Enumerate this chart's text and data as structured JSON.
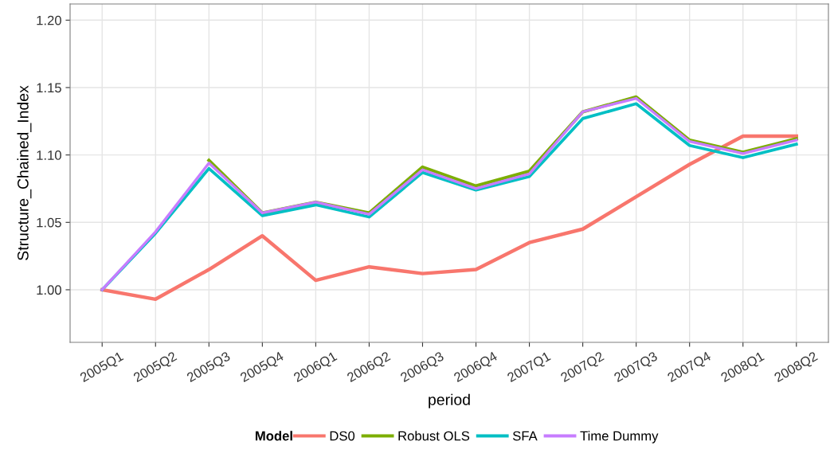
{
  "chart_data": {
    "type": "line",
    "xlabel": "period",
    "ylabel": "Structure_Chained_Index",
    "legend_title": "Model",
    "categories": [
      "2005Q1",
      "2005Q2",
      "2005Q3",
      "2005Q4",
      "2006Q1",
      "2006Q2",
      "2006Q3",
      "2006Q4",
      "2007Q1",
      "2007Q2",
      "2007Q3",
      "2007Q4",
      "2008Q1",
      "2008Q2"
    ],
    "series": [
      {
        "name": "DS0",
        "color": "#f8766d",
        "values": [
          1.0,
          0.993,
          1.015,
          1.04,
          1.007,
          1.017,
          1.012,
          1.015,
          1.035,
          1.045,
          1.069,
          1.093,
          1.114,
          1.114
        ]
      },
      {
        "name": "Robust OLS",
        "color": "#7cae00",
        "values": [
          null,
          null,
          1.096,
          1.057,
          1.065,
          1.057,
          1.091,
          1.077,
          1.088,
          1.132,
          1.143,
          1.111,
          1.102,
          1.112
        ]
      },
      {
        "name": "SFA",
        "color": "#00bfc4",
        "values": [
          1.0,
          1.042,
          1.09,
          1.055,
          1.063,
          1.054,
          1.087,
          1.074,
          1.084,
          1.127,
          1.138,
          1.107,
          1.098,
          1.108
        ]
      },
      {
        "name": "Time Dummy",
        "color": "#c77cff",
        "values": [
          1.0,
          1.043,
          1.094,
          1.057,
          1.065,
          1.056,
          1.089,
          1.075,
          1.086,
          1.132,
          1.142,
          1.11,
          1.101,
          1.111
        ]
      }
    ],
    "ylim": [
      0.961,
      1.212
    ],
    "yticks": [
      {
        "value": 1.0,
        "label": "1.00"
      },
      {
        "value": 1.05,
        "label": "1.05"
      },
      {
        "value": 1.1,
        "label": "1.10"
      },
      {
        "value": 1.15,
        "label": "1.15"
      },
      {
        "value": 1.2,
        "label": "1.20"
      }
    ],
    "grid": true,
    "legend": "bottom",
    "marker": "none",
    "line_style": "solid"
  }
}
